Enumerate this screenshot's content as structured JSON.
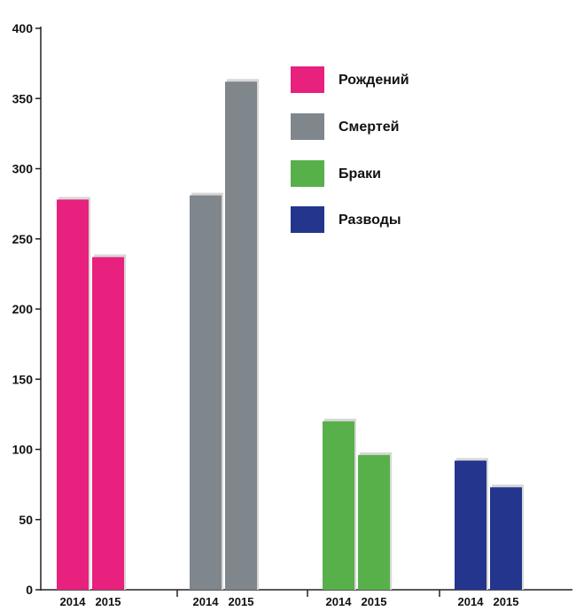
{
  "chart_data": {
    "type": "bar",
    "title": "",
    "xlabel": "",
    "ylabel": "",
    "ylim": [
      0,
      400
    ],
    "yticks": [
      0,
      50,
      100,
      150,
      200,
      250,
      300,
      350,
      400
    ],
    "grid": false,
    "legend_position": "top-right",
    "groups": [
      {
        "name": "Рождений",
        "color": "#e8207e",
        "bars": [
          {
            "label": "2014",
            "value": 278
          },
          {
            "label": "2015",
            "value": 237
          }
        ]
      },
      {
        "name": "Смертей",
        "color": "#7f868c",
        "bars": [
          {
            "label": "2014",
            "value": 281
          },
          {
            "label": "2015",
            "value": 362
          }
        ]
      },
      {
        "name": "Браки",
        "color": "#58b04a",
        "bars": [
          {
            "label": "2014",
            "value": 120
          },
          {
            "label": "2015",
            "value": 96
          }
        ]
      },
      {
        "name": "Разводы",
        "color": "#23358c",
        "bars": [
          {
            "label": "2014",
            "value": 92
          },
          {
            "label": "2015",
            "value": 73
          }
        ]
      }
    ]
  }
}
